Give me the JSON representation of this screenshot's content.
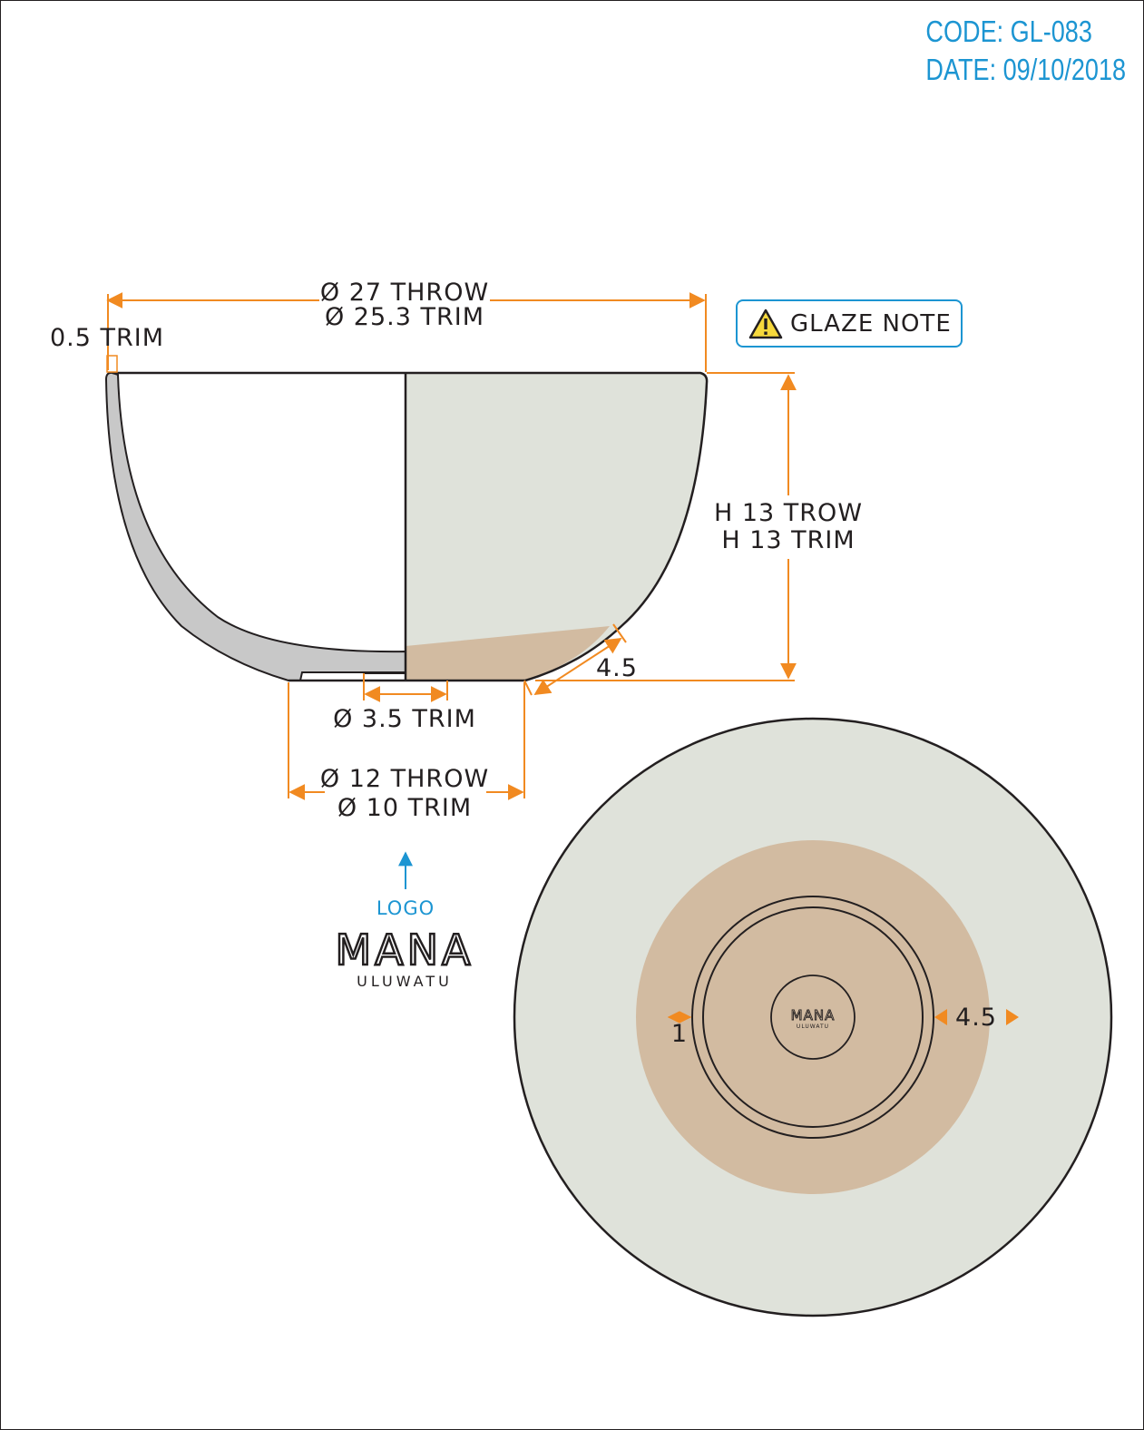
{
  "header": {
    "code": "CODE: GL-083",
    "date": "DATE: 09/10/2018"
  },
  "colors": {
    "accent_blue": "#1c95d2",
    "dimension_orange": "#f18a21",
    "outline": "#231f20",
    "glaze_grey": "#dfe2da",
    "clay_tan": "#d2bba1",
    "wall_grey": "#c8c8c8"
  },
  "dimensions": {
    "rim_throw": "Ø 27 THROW",
    "rim_trim": "Ø 25.3 TRIM",
    "wall_trim": "0.5 TRIM",
    "height_throw": "H 13 TROW",
    "height_trim": "H 13 TRIM",
    "unglazed_band": "4.5",
    "inner_foot": "Ø 3.5 TRIM",
    "foot_throw": "Ø 12 THROW",
    "foot_trim": "Ø 10 TRIM",
    "foot_ring": "1",
    "bottom_band": "4.5"
  },
  "glaze_note": {
    "label": "GLAZE NOTE",
    "icon": "warning-icon"
  },
  "logo": {
    "pointer_label": "LOGO",
    "brand": "MANA",
    "sub": "ULUWATU"
  }
}
